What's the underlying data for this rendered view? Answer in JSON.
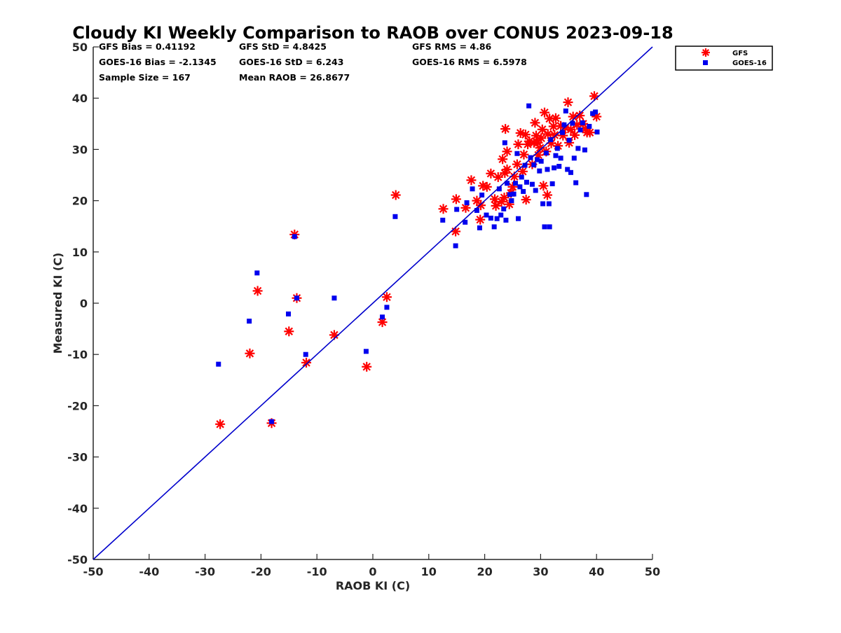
{
  "chart_data": {
    "type": "scatter",
    "title": "Cloudy KI Weekly Comparison to RAOB over CONUS 2023-09-18",
    "xlabel": "RAOB KI (C)",
    "ylabel": "Measured KI (C)",
    "xlim": [
      -50,
      50
    ],
    "ylim": [
      -50,
      50
    ],
    "xticks": [
      "-50",
      "-40",
      "-30",
      "-20",
      "-10",
      "0",
      "10",
      "20",
      "30",
      "40",
      "50"
    ],
    "yticks": [
      "-50",
      "-40",
      "-30",
      "-20",
      "-10",
      "0",
      "10",
      "20",
      "30",
      "40",
      "50"
    ],
    "grid": false,
    "legend_position": "outside-top-right",
    "reference_line": {
      "x": [
        -50,
        50
      ],
      "y": [
        -50,
        50
      ],
      "color": "#0000cc"
    },
    "stats": {
      "gfs_bias": "GFS Bias = 0.41192",
      "gfs_std": "GFS StD = 4.8425",
      "gfs_rms": "GFS RMS = 4.86",
      "goes_bias": "GOES-16 Bias = -2.1345",
      "goes_std": "GOES-16 StD = 6.243",
      "goes_rms": "GOES-16 RMS = 6.5978",
      "sample_size": "Sample Size = 167",
      "mean_raob": "Mean RAOB = 26.8677"
    },
    "series": [
      {
        "name": "GFS",
        "marker": "asterisk",
        "color": "#ff0000",
        "points": [
          [
            -27.3,
            -23.6
          ],
          [
            -18.1,
            -23.4
          ],
          [
            -22.0,
            -9.8
          ],
          [
            -20.6,
            2.4
          ],
          [
            -14.0,
            13.4
          ],
          [
            -13.6,
            1.0
          ],
          [
            -15.0,
            -5.5
          ],
          [
            -11.9,
            -11.6
          ],
          [
            -6.9,
            -6.2
          ],
          [
            -1.1,
            -12.4
          ],
          [
            1.7,
            -3.7
          ],
          [
            2.5,
            1.2
          ],
          [
            4.1,
            21.1
          ],
          [
            12.6,
            18.4
          ],
          [
            14.8,
            14.0
          ],
          [
            14.9,
            20.3
          ],
          [
            16.6,
            18.6
          ],
          [
            17.6,
            24.0
          ],
          [
            18.6,
            20.0
          ],
          [
            19.2,
            16.3
          ],
          [
            19.3,
            19.1
          ],
          [
            19.7,
            22.9
          ],
          [
            20.4,
            22.7
          ],
          [
            21.1,
            25.3
          ],
          [
            21.8,
            20.3
          ],
          [
            22.0,
            19.0
          ],
          [
            22.4,
            24.6
          ],
          [
            23.0,
            19.8
          ],
          [
            23.2,
            28.1
          ],
          [
            23.5,
            20.6
          ],
          [
            23.6,
            25.4
          ],
          [
            23.7,
            34.0
          ],
          [
            24.0,
            26.1
          ],
          [
            24.0,
            29.6
          ],
          [
            24.4,
            19.3
          ],
          [
            24.7,
            21.5
          ],
          [
            25.0,
            22.7
          ],
          [
            25.3,
            24.7
          ],
          [
            25.8,
            27.1
          ],
          [
            26.0,
            31.0
          ],
          [
            26.4,
            33.2
          ],
          [
            26.8,
            25.7
          ],
          [
            27.0,
            29.0
          ],
          [
            27.3,
            32.9
          ],
          [
            27.4,
            20.2
          ],
          [
            27.7,
            31.0
          ],
          [
            28.0,
            31.6
          ],
          [
            28.5,
            27.1
          ],
          [
            28.8,
            31.3
          ],
          [
            29.0,
            35.2
          ],
          [
            29.2,
            32.7
          ],
          [
            29.5,
            31.3
          ],
          [
            29.6,
            28.9
          ],
          [
            29.9,
            30.3
          ],
          [
            30.1,
            32.2
          ],
          [
            30.3,
            33.9
          ],
          [
            30.5,
            22.9
          ],
          [
            30.7,
            37.2
          ],
          [
            31.0,
            29.6
          ],
          [
            31.2,
            21.1
          ],
          [
            31.3,
            33.0
          ],
          [
            31.6,
            36.0
          ],
          [
            31.9,
            31.2
          ],
          [
            32.3,
            34.5
          ],
          [
            32.5,
            32.8
          ],
          [
            32.7,
            36.1
          ],
          [
            33.1,
            30.7
          ],
          [
            33.6,
            34.6
          ],
          [
            34.0,
            32.7
          ],
          [
            34.4,
            34.2
          ],
          [
            34.9,
            39.2
          ],
          [
            35.1,
            31.3
          ],
          [
            35.4,
            33.9
          ],
          [
            35.8,
            36.4
          ],
          [
            36.1,
            32.8
          ],
          [
            36.5,
            34.8
          ],
          [
            37.0,
            36.6
          ],
          [
            37.6,
            35.0
          ],
          [
            38.0,
            34.0
          ],
          [
            38.3,
            33.3
          ],
          [
            38.8,
            33.3
          ],
          [
            39.6,
            40.4
          ],
          [
            40.0,
            36.4
          ]
        ]
      },
      {
        "name": "GOES-16",
        "marker": "square",
        "color": "#0000ee",
        "points": [
          [
            -27.6,
            -11.9
          ],
          [
            -22.1,
            -3.5
          ],
          [
            -20.7,
            5.9
          ],
          [
            -18.1,
            -23.1
          ],
          [
            -15.1,
            -2.1
          ],
          [
            -14.0,
            13.0
          ],
          [
            -13.6,
            1.0
          ],
          [
            -12.0,
            -10.0
          ],
          [
            -6.9,
            1.0
          ],
          [
            -1.2,
            -9.4
          ],
          [
            1.7,
            -2.7
          ],
          [
            2.5,
            -0.8
          ],
          [
            4.0,
            16.9
          ],
          [
            12.5,
            16.2
          ],
          [
            14.8,
            11.2
          ],
          [
            15.0,
            18.3
          ],
          [
            16.5,
            15.8
          ],
          [
            16.8,
            19.6
          ],
          [
            17.8,
            22.3
          ],
          [
            18.6,
            18.1
          ],
          [
            19.1,
            14.7
          ],
          [
            19.5,
            21.1
          ],
          [
            20.3,
            17.2
          ],
          [
            21.1,
            16.6
          ],
          [
            21.7,
            14.9
          ],
          [
            22.2,
            16.5
          ],
          [
            22.6,
            22.3
          ],
          [
            22.9,
            17.2
          ],
          [
            23.4,
            18.4
          ],
          [
            23.6,
            31.3
          ],
          [
            23.8,
            16.2
          ],
          [
            24.0,
            23.4
          ],
          [
            24.5,
            21.2
          ],
          [
            24.8,
            20.0
          ],
          [
            25.2,
            21.3
          ],
          [
            25.5,
            23.4
          ],
          [
            25.8,
            29.2
          ],
          [
            26.0,
            16.5
          ],
          [
            26.3,
            22.7
          ],
          [
            26.6,
            24.6
          ],
          [
            26.9,
            21.8
          ],
          [
            27.2,
            26.9
          ],
          [
            27.5,
            23.6
          ],
          [
            27.9,
            38.5
          ],
          [
            28.2,
            28.4
          ],
          [
            28.5,
            23.2
          ],
          [
            28.8,
            27.0
          ],
          [
            29.1,
            22.0
          ],
          [
            29.4,
            28.0
          ],
          [
            29.8,
            25.8
          ],
          [
            30.1,
            27.7
          ],
          [
            30.4,
            19.4
          ],
          [
            30.7,
            14.9
          ],
          [
            31.0,
            29.3
          ],
          [
            31.2,
            26.1
          ],
          [
            31.5,
            19.4
          ],
          [
            31.6,
            14.9
          ],
          [
            31.8,
            31.9
          ],
          [
            32.1,
            23.3
          ],
          [
            32.4,
            26.4
          ],
          [
            32.7,
            28.8
          ],
          [
            33.0,
            30.2
          ],
          [
            33.3,
            26.7
          ],
          [
            33.6,
            28.3
          ],
          [
            33.9,
            33.3
          ],
          [
            34.2,
            34.8
          ],
          [
            34.5,
            37.5
          ],
          [
            34.8,
            26.1
          ],
          [
            35.1,
            31.8
          ],
          [
            35.4,
            25.5
          ],
          [
            35.7,
            35.1
          ],
          [
            36.0,
            28.3
          ],
          [
            36.3,
            23.5
          ],
          [
            36.7,
            30.2
          ],
          [
            37.1,
            33.8
          ],
          [
            37.5,
            35.2
          ],
          [
            37.9,
            29.9
          ],
          [
            38.2,
            21.2
          ],
          [
            38.7,
            34.5
          ],
          [
            39.3,
            37.0
          ],
          [
            39.8,
            37.3
          ],
          [
            40.1,
            33.4
          ]
        ]
      }
    ]
  }
}
